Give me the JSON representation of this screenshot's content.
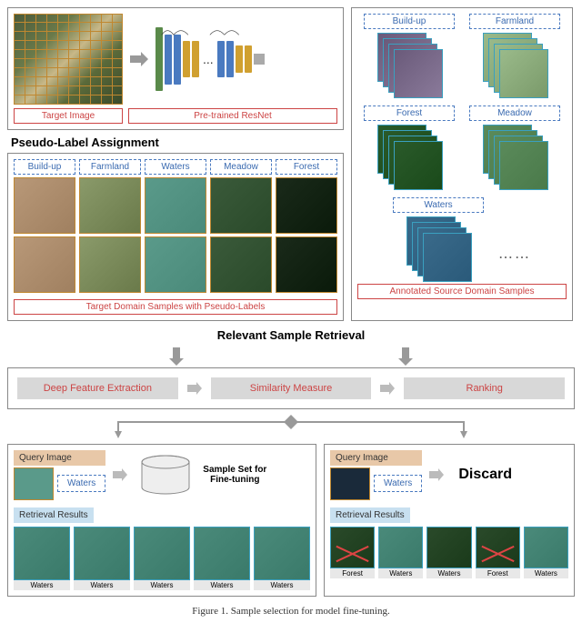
{
  "top": {
    "target_label": "Target Image",
    "resnet_label": "Pre-trained ResNet",
    "resnet_blocks": [
      "b1",
      "b2",
      "b3",
      "b4",
      "b5",
      "dots",
      "b6",
      "b7",
      "b8",
      "b9",
      "out"
    ],
    "dots": "...",
    "arrow_color": "#999999",
    "target_border": "#c08830"
  },
  "pseudo": {
    "title": "Pseudo-Label Assignment",
    "categories": [
      "Build-up",
      "Farmland",
      "Waters",
      "Meadow",
      "Forest"
    ],
    "classes": [
      "buildup",
      "farmland",
      "waters",
      "meadow",
      "forest"
    ],
    "caption": "Target Domain Samples with Pseudo-Labels"
  },
  "source": {
    "categories": [
      "Build-up",
      "Farmland",
      "Forest",
      "Meadow",
      "Waters"
    ],
    "classes": [
      "buildup",
      "farmland",
      "forest",
      "meadow",
      "waters"
    ],
    "dots": "⋯⋯",
    "caption": "Annotated Source Domain Samples"
  },
  "retrieval": {
    "title": "Relevant Sample Retrieval",
    "steps": [
      "Deep Feature Extraction",
      "Similarity Measure",
      "Ranking"
    ]
  },
  "bottom": {
    "query_label": "Query Image",
    "results_label": "Retrieval Results",
    "class_label": "Waters",
    "finetune_text": "Sample Set for Fine-tuning",
    "discard_text": "Discard",
    "left_results": [
      {
        "cls": "waters",
        "cap": "Waters",
        "x": false
      },
      {
        "cls": "waters",
        "cap": "Waters",
        "x": false
      },
      {
        "cls": "waters",
        "cap": "Waters",
        "x": false
      },
      {
        "cls": "waters",
        "cap": "Waters",
        "x": false
      },
      {
        "cls": "waters",
        "cap": "Waters",
        "x": false
      }
    ],
    "right_results": [
      {
        "cls": "forest",
        "cap": "Forest",
        "x": true
      },
      {
        "cls": "waters",
        "cap": "Waters",
        "x": false
      },
      {
        "cls": "forest",
        "cap": "Waters",
        "x": false
      },
      {
        "cls": "forest",
        "cap": "Forest",
        "x": true
      },
      {
        "cls": "waters",
        "cap": "Waters",
        "x": false
      }
    ]
  },
  "figure_caption": "Figure 1. Sample selection for model fine-tuning.",
  "colors": {
    "panel_border": "#888888",
    "dashed_blue": "#4a7ac0",
    "red_text": "#cc4444",
    "teal_border": "#3aa0c0",
    "step_bg": "#d8d8d8"
  }
}
